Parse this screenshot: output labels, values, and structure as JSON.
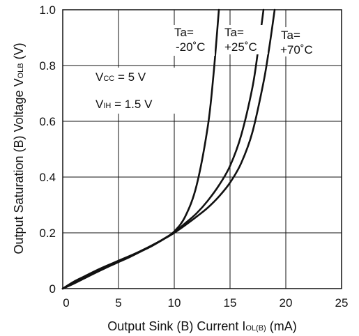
{
  "chart_data": {
    "type": "line",
    "title": "",
    "xlabel": "Output Sink (B) Current I",
    "xlabel_sub": "OL(B)",
    "xlabel_unit": " (mA)",
    "ylabel": "Output Saturation (B) Voltage V",
    "ylabel_sub": "OLB",
    "ylabel_unit": " (V)",
    "xlim": [
      0,
      25
    ],
    "ylim": [
      0,
      1.0
    ],
    "xticks": [
      0,
      5,
      10,
      15,
      20,
      25
    ],
    "xtick_labels": [
      "0",
      "5",
      "10",
      "15",
      "20",
      "25"
    ],
    "yticks": [
      0,
      0.2,
      0.4,
      0.6,
      0.8,
      1.0
    ],
    "ytick_labels": [
      "0",
      "0.2",
      "0.4",
      "0.6",
      "0.8",
      "1.0"
    ],
    "grid": true,
    "conditions": {
      "vcc_label": "V",
      "vcc_sub": "CC",
      "vcc_value": " = 5 V",
      "vih_label": "V",
      "vih_sub": "IH",
      "vih_value": " = 1.5 V"
    },
    "series": [
      {
        "name": "Ta= -20˚C",
        "label_line1": "Ta=",
        "label_line2": "-20˚C",
        "x": [
          0,
          1,
          2,
          3,
          4,
          5,
          6,
          7,
          8,
          9,
          10,
          11,
          12,
          13,
          13.5,
          14
        ],
        "y": [
          0,
          0.025,
          0.045,
          0.065,
          0.083,
          0.1,
          0.117,
          0.135,
          0.155,
          0.177,
          0.205,
          0.26,
          0.37,
          0.58,
          0.76,
          1.0
        ]
      },
      {
        "name": "Ta= +25˚C",
        "label_line1": "Ta=",
        "label_line2": "+25˚C",
        "x": [
          0,
          1,
          2,
          3,
          4,
          5,
          6,
          7,
          8,
          9,
          10,
          11,
          12,
          13,
          14,
          15,
          16,
          17,
          17.5,
          18
        ],
        "y": [
          0,
          0.022,
          0.042,
          0.062,
          0.08,
          0.098,
          0.116,
          0.135,
          0.155,
          0.177,
          0.202,
          0.235,
          0.27,
          0.315,
          0.37,
          0.44,
          0.55,
          0.72,
          0.85,
          1.0
        ]
      },
      {
        "name": "Ta= +70˚C",
        "label_line1": "Ta=",
        "label_line2": "+70˚C",
        "x": [
          0,
          1,
          2,
          3,
          4,
          5,
          6,
          7,
          8,
          9,
          10,
          11,
          12,
          13,
          14,
          15,
          16,
          17,
          18,
          18.5,
          19
        ],
        "y": [
          0,
          0.018,
          0.038,
          0.058,
          0.077,
          0.095,
          0.113,
          0.133,
          0.153,
          0.176,
          0.2,
          0.228,
          0.258,
          0.29,
          0.33,
          0.38,
          0.45,
          0.56,
          0.74,
          0.86,
          1.0
        ]
      }
    ]
  }
}
